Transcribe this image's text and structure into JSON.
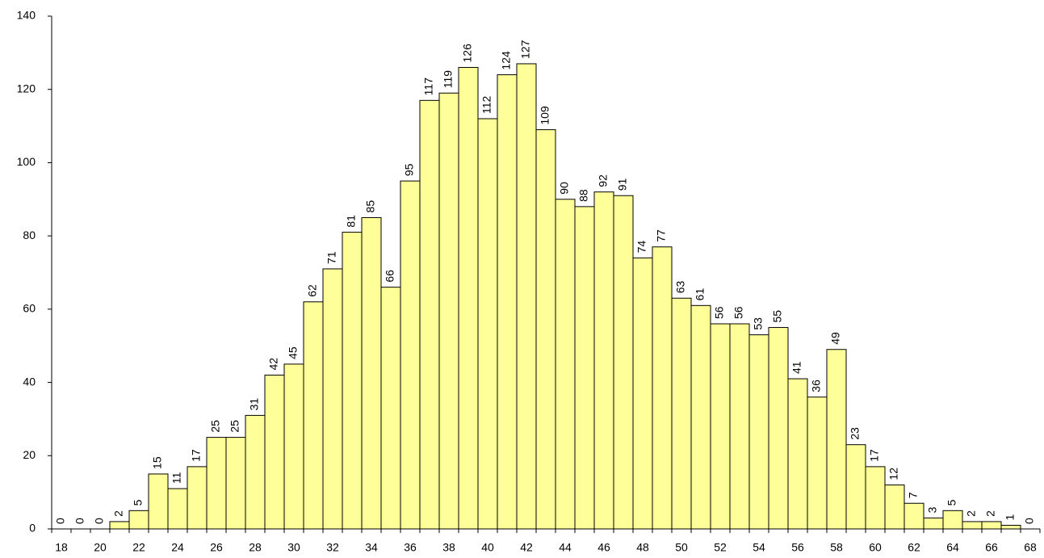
{
  "chart_data": {
    "type": "bar",
    "categories": [
      "18",
      null,
      "20",
      null,
      "22",
      null,
      "24",
      null,
      "26",
      null,
      "28",
      null,
      "30",
      null,
      "32",
      null,
      "34",
      null,
      "36",
      null,
      "38",
      null,
      "40",
      null,
      "42",
      null,
      "44",
      null,
      "46",
      null,
      "48",
      null,
      "50",
      null,
      "52",
      null,
      "54",
      null,
      "56",
      null,
      "58",
      null,
      "60",
      null,
      "62",
      null,
      "64",
      null,
      "66",
      null,
      "68"
    ],
    "values": [
      0,
      0,
      0,
      2,
      5,
      15,
      11,
      17,
      25,
      25,
      31,
      42,
      45,
      62,
      71,
      81,
      85,
      66,
      95,
      117,
      119,
      126,
      112,
      124,
      127,
      109,
      90,
      88,
      92,
      91,
      74,
      77,
      63,
      61,
      56,
      56,
      53,
      55,
      41,
      36,
      49,
      23,
      17,
      12,
      7,
      3,
      5,
      2,
      2,
      1,
      0
    ],
    "color": "#ffff99",
    "ylim": [
      0,
      140
    ],
    "yticks": [
      0,
      20,
      40,
      60,
      80,
      100,
      120,
      140
    ],
    "grid": false
  }
}
